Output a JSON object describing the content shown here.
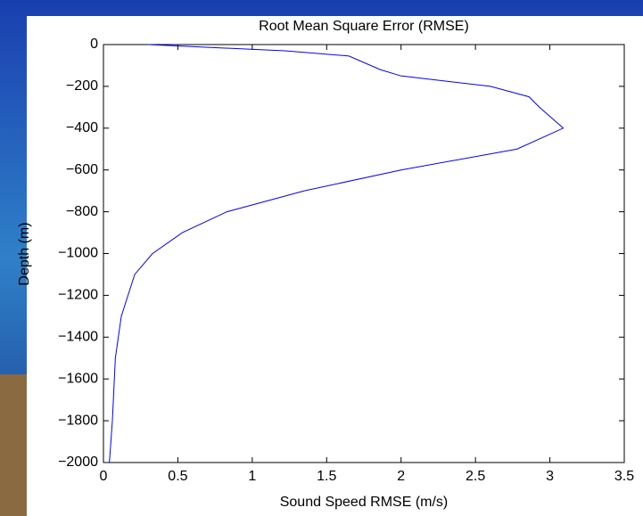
{
  "chart_data": {
    "type": "line",
    "title": "Root Mean Square Error (RMSE)",
    "x_label": "Sound Speed RMSE (m/s)",
    "y_label": "Depth (m)",
    "series": [
      {
        "color": "#0000ff",
        "x": [
          0.3,
          1.22,
          1.65,
          1.86,
          2.0,
          2.6,
          2.86,
          2.93,
          3.09,
          2.78,
          2.0,
          1.35,
          0.83,
          0.53,
          0.33,
          0.21,
          0.12,
          0.08,
          0.06,
          0.04
        ],
        "values": [
          0,
          -30,
          -55,
          -120,
          -150,
          -200,
          -250,
          -300,
          -400,
          -500,
          -600,
          -700,
          -800,
          -900,
          -1000,
          -1100,
          -1300,
          -1500,
          -1800,
          -2000
        ]
      }
    ],
    "xlim": [
      0,
      3.5
    ],
    "xticks": [
      0,
      0.5,
      1,
      1.5,
      2,
      2.5,
      3,
      3.5
    ],
    "ylim": [
      -2000,
      0
    ],
    "yticks": [
      0,
      {
        "value": -200,
        "label": "−200"
      },
      {
        "value": -400,
        "label": "−400"
      },
      {
        "value": -600,
        "label": "−600"
      },
      {
        "value": -800,
        "label": "−800"
      },
      {
        "value": -1000,
        "label": "−1000"
      },
      {
        "value": -1200,
        "label": "−1200"
      },
      {
        "value": -1400,
        "label": "−1400"
      },
      {
        "value": -1600,
        "label": "−1600"
      },
      {
        "value": -1800,
        "label": "−1800"
      },
      {
        "value": -2000,
        "label": "−2000"
      }
    ]
  }
}
